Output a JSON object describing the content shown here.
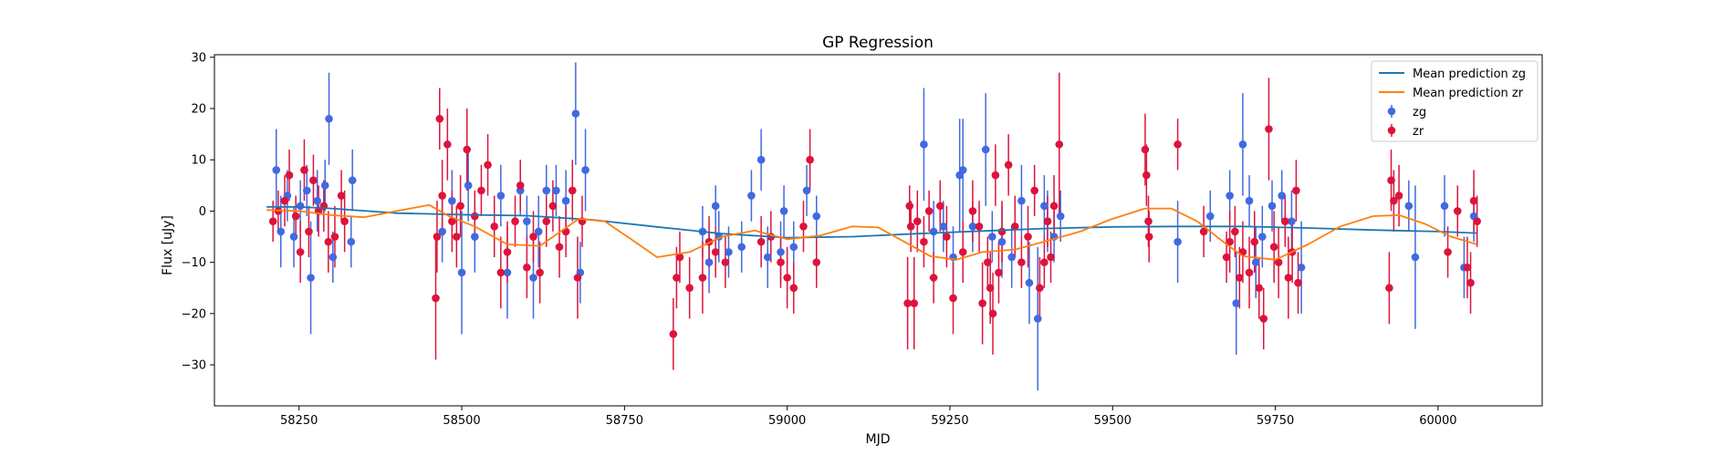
{
  "chart_data": {
    "type": "scatter",
    "title": "GP Regression",
    "xlabel": "MJD",
    "ylabel": "Flux [uJy]",
    "xlim": [
      58120,
      60160
    ],
    "ylim": [
      -38,
      30.5
    ],
    "xticks": [
      58250,
      58500,
      58750,
      59000,
      59250,
      59500,
      59750,
      60000
    ],
    "yticks": [
      -30,
      -20,
      -10,
      0,
      10,
      20,
      30
    ],
    "grid": false,
    "legend_position": "top-right",
    "lines": [
      {
        "name": "Mean prediction zg",
        "color": "#1f77b4",
        "x": [
          58200,
          58250,
          58300,
          58400,
          58500,
          58600,
          58700,
          58800,
          58900,
          59000,
          59100,
          59200,
          59300,
          59400,
          59500,
          59600,
          59700,
          59800,
          59900,
          60000,
          60060
        ],
        "y": [
          0.8,
          0.8,
          0.5,
          -0.4,
          -0.7,
          -0.9,
          -1.7,
          -3.1,
          -4.4,
          -5.2,
          -5.0,
          -4.4,
          -3.9,
          -3.4,
          -3.1,
          -3.0,
          -3.0,
          -3.3,
          -3.7,
          -4.0,
          -4.3
        ]
      },
      {
        "name": "Mean prediction zr",
        "color": "#ff7f0e",
        "x": [
          58200,
          58250,
          58300,
          58350,
          58400,
          58450,
          58480,
          58520,
          58570,
          58620,
          58680,
          58720,
          58760,
          58800,
          58850,
          58900,
          58950,
          59000,
          59050,
          59100,
          59140,
          59180,
          59220,
          59260,
          59300,
          59350,
          59400,
          59450,
          59500,
          59550,
          59590,
          59630,
          59670,
          59700,
          59750,
          59800,
          59850,
          59900,
          59940,
          59980,
          60020,
          60060
        ],
        "y": [
          0.2,
          0.0,
          -0.8,
          -1.2,
          0.0,
          1.2,
          -1.0,
          -3.0,
          -6.5,
          -6.8,
          -1.5,
          -2.0,
          -5.5,
          -9.0,
          -8.0,
          -5.0,
          -3.8,
          -5.5,
          -4.8,
          -3.0,
          -3.2,
          -6.0,
          -8.8,
          -9.5,
          -8.0,
          -7.5,
          -5.8,
          -4.0,
          -1.5,
          0.5,
          0.5,
          -2.0,
          -6.0,
          -8.8,
          -9.5,
          -6.5,
          -3.0,
          -1.0,
          -0.8,
          -2.5,
          -5.0,
          -6.5
        ]
      }
    ],
    "series": [
      {
        "name": "zg",
        "color": "#4169e1",
        "points": [
          [
            58215,
            8,
            8
          ],
          [
            58222,
            -4,
            7
          ],
          [
            58232,
            3,
            5
          ],
          [
            58242,
            -5,
            6
          ],
          [
            58252,
            1,
            5
          ],
          [
            58262,
            4,
            5
          ],
          [
            58268,
            -13,
            11
          ],
          [
            58278,
            2,
            6
          ],
          [
            58290,
            5,
            5
          ],
          [
            58296,
            18,
            9
          ],
          [
            58302,
            -9,
            5
          ],
          [
            58332,
            6,
            6
          ],
          [
            58330,
            -6,
            5
          ],
          [
            58470,
            -4,
            6
          ],
          [
            58485,
            2,
            6
          ],
          [
            58500,
            -12,
            12
          ],
          [
            58510,
            5,
            7
          ],
          [
            58520,
            -5,
            7
          ],
          [
            58560,
            3,
            6
          ],
          [
            58570,
            -12,
            9
          ],
          [
            58590,
            4,
            5
          ],
          [
            58600,
            -2,
            5
          ],
          [
            58610,
            -13,
            8
          ],
          [
            58618,
            -4,
            7
          ],
          [
            58630,
            4,
            5
          ],
          [
            58645,
            4,
            5
          ],
          [
            58660,
            2,
            6
          ],
          [
            58675,
            19,
            10
          ],
          [
            58682,
            -12,
            6
          ],
          [
            58690,
            8,
            8
          ],
          [
            58870,
            -4,
            5
          ],
          [
            58880,
            -10,
            6
          ],
          [
            58890,
            1,
            4
          ],
          [
            58895,
            -5,
            5
          ],
          [
            58910,
            -8,
            5
          ],
          [
            58930,
            -7,
            5
          ],
          [
            58945,
            3,
            5
          ],
          [
            58960,
            10,
            6
          ],
          [
            58970,
            -9,
            6
          ],
          [
            58990,
            -8,
            6
          ],
          [
            58995,
            0,
            5
          ],
          [
            59010,
            -7,
            5
          ],
          [
            59030,
            4,
            5
          ],
          [
            59045,
            -1,
            4
          ],
          [
            59210,
            13,
            11
          ],
          [
            59225,
            -4,
            6
          ],
          [
            59240,
            -3,
            5
          ],
          [
            59255,
            -9,
            6
          ],
          [
            59265,
            7,
            11
          ],
          [
            59270,
            8,
            10
          ],
          [
            59285,
            -3,
            5
          ],
          [
            59305,
            12,
            11
          ],
          [
            59315,
            -5,
            5
          ],
          [
            59330,
            -6,
            7
          ],
          [
            59345,
            -9,
            6
          ],
          [
            59360,
            2,
            7
          ],
          [
            59372,
            -14,
            8
          ],
          [
            59385,
            -21,
            14
          ],
          [
            59395,
            1,
            6
          ],
          [
            59400,
            -2,
            6
          ],
          [
            59410,
            -5,
            5
          ],
          [
            59420,
            -1,
            5
          ],
          [
            59600,
            -6,
            8
          ],
          [
            59650,
            -1,
            5
          ],
          [
            59680,
            3,
            5
          ],
          [
            59690,
            -18,
            10
          ],
          [
            59700,
            13,
            10
          ],
          [
            59710,
            2,
            5
          ],
          [
            59720,
            -10,
            7
          ],
          [
            59730,
            -5,
            6
          ],
          [
            59745,
            1,
            5
          ],
          [
            59760,
            3,
            5
          ],
          [
            59775,
            -2,
            6
          ],
          [
            59790,
            -11,
            9
          ],
          [
            59955,
            1,
            5
          ],
          [
            59965,
            -9,
            14
          ],
          [
            60010,
            1,
            6
          ],
          [
            60040,
            -11,
            6
          ],
          [
            60055,
            -1,
            5
          ]
        ]
      },
      {
        "name": "zr",
        "color": "#dc143c",
        "points": [
          [
            58210,
            -2,
            4
          ],
          [
            58218,
            0,
            4
          ],
          [
            58228,
            2,
            5
          ],
          [
            58235,
            7,
            5
          ],
          [
            58245,
            -1,
            4
          ],
          [
            58252,
            -8,
            6
          ],
          [
            58258,
            8,
            6
          ],
          [
            58265,
            -4,
            5
          ],
          [
            58272,
            6,
            5
          ],
          [
            58280,
            0,
            5
          ],
          [
            58288,
            1,
            5
          ],
          [
            58295,
            -6,
            6
          ],
          [
            58305,
            -5,
            6
          ],
          [
            58315,
            3,
            5
          ],
          [
            58320,
            -2,
            6
          ],
          [
            58460,
            -17,
            12
          ],
          [
            58462,
            -5,
            7
          ],
          [
            58466,
            18,
            6
          ],
          [
            58470,
            3,
            7
          ],
          [
            58478,
            13,
            7
          ],
          [
            58485,
            -2,
            6
          ],
          [
            58492,
            -5,
            6
          ],
          [
            58498,
            1,
            6
          ],
          [
            58508,
            12,
            8
          ],
          [
            58520,
            -1,
            5
          ],
          [
            58530,
            4,
            5
          ],
          [
            58540,
            9,
            6
          ],
          [
            58550,
            -3,
            6
          ],
          [
            58560,
            -12,
            7
          ],
          [
            58570,
            -8,
            6
          ],
          [
            58582,
            -2,
            5
          ],
          [
            58590,
            5,
            5
          ],
          [
            58600,
            -11,
            6
          ],
          [
            58610,
            -5,
            5
          ],
          [
            58620,
            -12,
            6
          ],
          [
            58630,
            -2,
            5
          ],
          [
            58640,
            1,
            5
          ],
          [
            58650,
            -7,
            6
          ],
          [
            58660,
            -4,
            5
          ],
          [
            58670,
            4,
            6
          ],
          [
            58678,
            -13,
            8
          ],
          [
            58685,
            -2,
            5
          ],
          [
            58825,
            -24,
            7
          ],
          [
            58830,
            -13,
            6
          ],
          [
            58835,
            -9,
            5
          ],
          [
            58850,
            -15,
            6
          ],
          [
            58870,
            -13,
            7
          ],
          [
            58880,
            -6,
            5
          ],
          [
            58890,
            -8,
            5
          ],
          [
            58905,
            -10,
            5
          ],
          [
            58960,
            -6,
            5
          ],
          [
            58975,
            -5,
            5
          ],
          [
            58990,
            -10,
            5
          ],
          [
            59000,
            -13,
            6
          ],
          [
            59010,
            -15,
            5
          ],
          [
            59025,
            -3,
            5
          ],
          [
            59035,
            10,
            6
          ],
          [
            59045,
            -10,
            5
          ],
          [
            59185,
            -18,
            9
          ],
          [
            59188,
            1,
            4
          ],
          [
            59190,
            -3,
            5
          ],
          [
            59195,
            -18,
            9
          ],
          [
            59200,
            -2,
            6
          ],
          [
            59210,
            -6,
            5
          ],
          [
            59218,
            0,
            4
          ],
          [
            59225,
            -13,
            5
          ],
          [
            59235,
            1,
            5
          ],
          [
            59245,
            -5,
            6
          ],
          [
            59255,
            -17,
            7
          ],
          [
            59270,
            -8,
            6
          ],
          [
            59285,
            0,
            6
          ],
          [
            59295,
            -3,
            5
          ],
          [
            59300,
            -18,
            8
          ],
          [
            59308,
            -10,
            5
          ],
          [
            59312,
            -15,
            7
          ],
          [
            59316,
            -20,
            8
          ],
          [
            59320,
            7,
            6
          ],
          [
            59325,
            -12,
            6
          ],
          [
            59330,
            -4,
            6
          ],
          [
            59340,
            9,
            6
          ],
          [
            59350,
            -3,
            6
          ],
          [
            59360,
            -10,
            5
          ],
          [
            59370,
            -5,
            6
          ],
          [
            59380,
            4,
            5
          ],
          [
            59388,
            -15,
            6
          ],
          [
            59395,
            -10,
            5
          ],
          [
            59400,
            -2,
            5
          ],
          [
            59405,
            -9,
            5
          ],
          [
            59410,
            1,
            6
          ],
          [
            59418,
            13,
            14
          ],
          [
            59550,
            12,
            7
          ],
          [
            59552,
            7,
            6
          ],
          [
            59556,
            -5,
            5
          ],
          [
            59555,
            -2,
            5
          ],
          [
            59600,
            13,
            5
          ],
          [
            59640,
            -4,
            5
          ],
          [
            59675,
            -9,
            5
          ],
          [
            59680,
            -6,
            6
          ],
          [
            59688,
            -4,
            5
          ],
          [
            59695,
            -13,
            6
          ],
          [
            59700,
            -8,
            6
          ],
          [
            59710,
            -12,
            7
          ],
          [
            59718,
            -6,
            6
          ],
          [
            59725,
            -15,
            6
          ],
          [
            59732,
            -21,
            6
          ],
          [
            59740,
            16,
            10
          ],
          [
            59748,
            -7,
            7
          ],
          [
            59755,
            -10,
            7
          ],
          [
            59765,
            -2,
            5
          ],
          [
            59770,
            -13,
            8
          ],
          [
            59776,
            -8,
            6
          ],
          [
            59782,
            4,
            6
          ],
          [
            59785,
            -14,
            6
          ],
          [
            59925,
            -15,
            7
          ],
          [
            59928,
            6,
            6
          ],
          [
            59932,
            2,
            6
          ],
          [
            59940,
            3,
            6
          ],
          [
            60015,
            -8,
            5
          ],
          [
            60030,
            0,
            5
          ],
          [
            60045,
            -11,
            6
          ],
          [
            60050,
            -14,
            6
          ],
          [
            60055,
            2,
            6
          ],
          [
            60060,
            -2,
            5
          ]
        ]
      }
    ]
  }
}
